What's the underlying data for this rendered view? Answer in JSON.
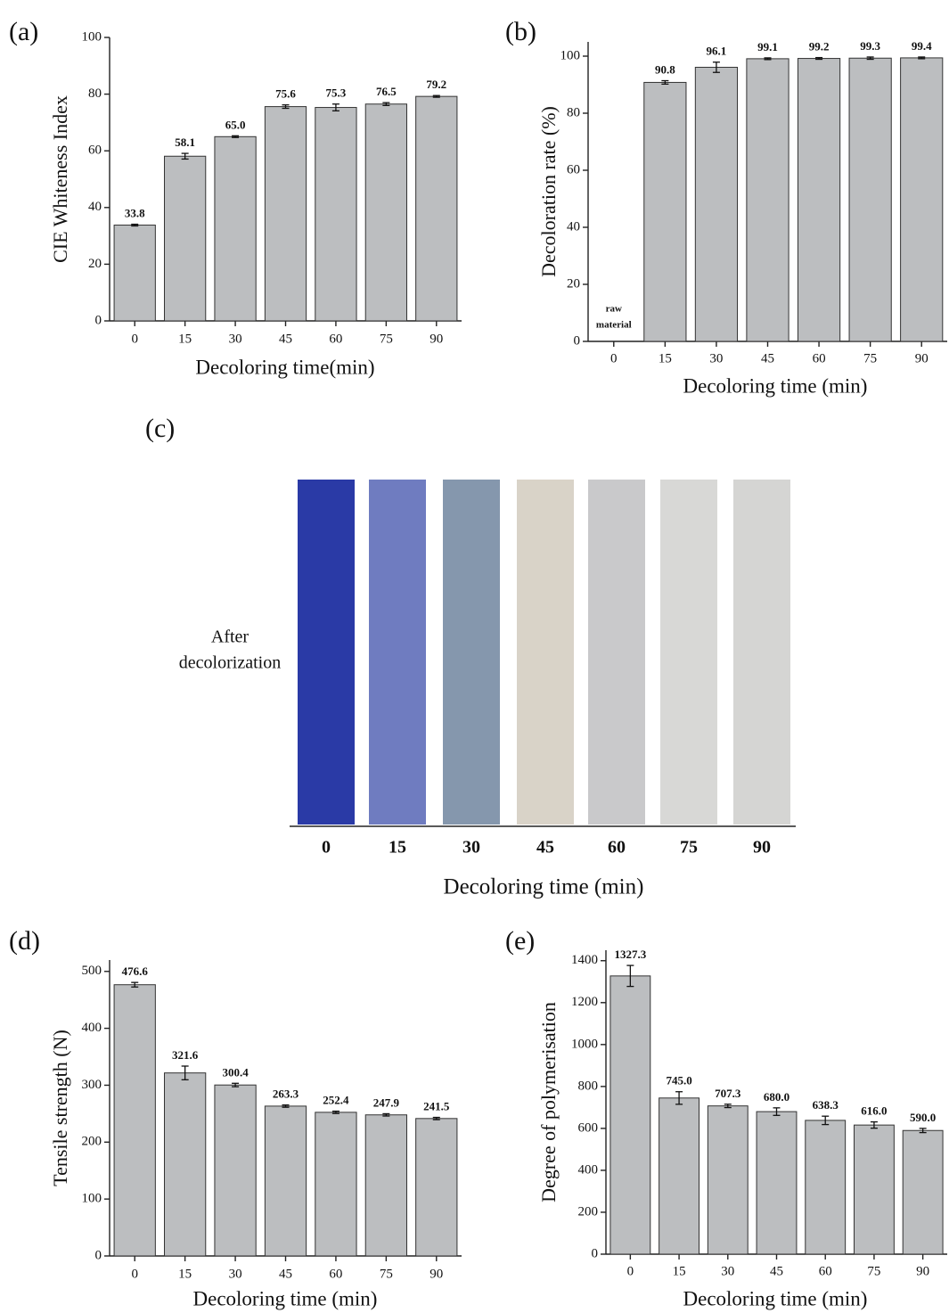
{
  "chart_data": [
    {
      "type": "bar",
      "panel_label": "(a)",
      "ylabel": "CIE Whiteness Index",
      "xlabel": "Decoloring time(min)",
      "categories": [
        "0",
        "15",
        "30",
        "45",
        "60",
        "75",
        "90"
      ],
      "values": [
        33.8,
        58.1,
        65.0,
        75.6,
        75.3,
        76.5,
        79.2
      ],
      "value_labels": [
        "33.8",
        "58.1",
        "65.0",
        "75.6",
        "75.3",
        "76.5",
        "79.2"
      ],
      "errors": [
        0.3,
        1.0,
        0.3,
        0.6,
        1.2,
        0.5,
        0.3
      ],
      "color": "#bcbec0",
      "ylim": [
        0,
        100
      ],
      "yticks": [
        0,
        20,
        40,
        60,
        80,
        100
      ]
    },
    {
      "type": "bar",
      "panel_label": "(b)",
      "ylabel": "Decoloration rate (%)",
      "xlabel": "Decoloring time (min)",
      "categories": [
        "0",
        "15",
        "30",
        "45",
        "60",
        "75",
        "90"
      ],
      "values": [
        0,
        90.8,
        96.1,
        99.1,
        99.2,
        99.3,
        99.4
      ],
      "value_labels": [
        null,
        "90.8",
        "96.1",
        "99.1",
        "99.2",
        "99.3",
        "99.4"
      ],
      "errors": [
        0,
        0.6,
        1.8,
        0.3,
        0.3,
        0.4,
        0.3
      ],
      "annotation": [
        "raw",
        "material"
      ],
      "color": "#bcbec0",
      "ylim": [
        0,
        105
      ],
      "yticks": [
        0,
        20,
        40,
        60,
        80,
        100
      ]
    },
    {
      "type": "photo",
      "panel_label": "(c)",
      "row_label": [
        "After",
        "decolorization"
      ],
      "xlabel": "Decoloring time (min)",
      "categories": [
        "0",
        "15",
        "30",
        "45",
        "60",
        "75",
        "90"
      ],
      "colors": [
        "#2a3aa6",
        "#6f7cc0",
        "#8597ad",
        "#d9d3c8",
        "#c9c9cb",
        "#d8d8d6",
        "#d5d5d3"
      ]
    },
    {
      "type": "bar",
      "panel_label": "(d)",
      "ylabel": "Tensile strength (N)",
      "xlabel": "Decoloring time (min)",
      "categories": [
        "0",
        "15",
        "30",
        "45",
        "60",
        "75",
        "90"
      ],
      "values": [
        476.6,
        321.6,
        300.4,
        263.3,
        252.4,
        247.9,
        241.5
      ],
      "value_labels": [
        "476.6",
        "321.6",
        "300.4",
        "263.3",
        "252.4",
        "247.9",
        "241.5"
      ],
      "errors": [
        4,
        12,
        3,
        2,
        2,
        2,
        2
      ],
      "color": "#bcbec0",
      "ylim": [
        0,
        520
      ],
      "yticks": [
        0,
        100,
        200,
        300,
        400,
        500
      ]
    },
    {
      "type": "bar",
      "panel_label": "(e)",
      "ylabel": "Degree of polymerisation",
      "xlabel": "Decoloring time (min)",
      "categories": [
        "0",
        "15",
        "30",
        "45",
        "60",
        "75",
        "90"
      ],
      "values": [
        1327.3,
        745.0,
        707.3,
        680.0,
        638.3,
        616.0,
        590.0
      ],
      "value_labels": [
        "1327.3",
        "745.0",
        "707.3",
        "680.0",
        "638.3",
        "616.0",
        "590.0"
      ],
      "errors": [
        50,
        30,
        8,
        18,
        20,
        15,
        10
      ],
      "color": "#bcbec0",
      "ylim": [
        0,
        1450
      ],
      "yticks": [
        0,
        200,
        400,
        600,
        800,
        1000,
        1200,
        1400
      ]
    }
  ]
}
